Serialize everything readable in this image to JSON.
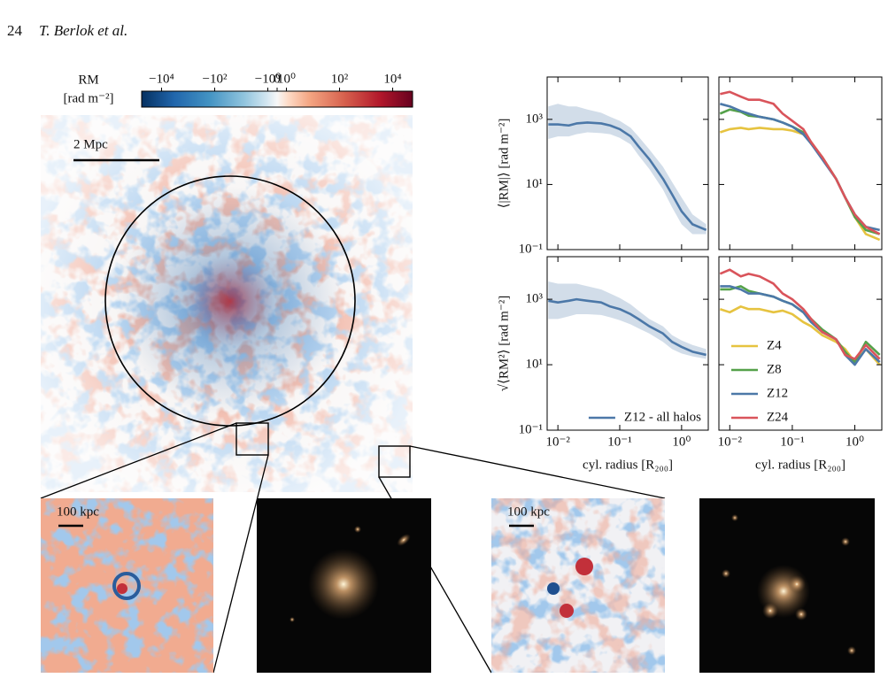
{
  "header": {
    "page": "24",
    "authors": "T. Berlok et al."
  },
  "figure": {
    "colorbar": {
      "label": "RM",
      "unit": "[rad m⁻²]",
      "scale": "symlog",
      "linthresh": 1,
      "clim": [
        -56000,
        56000
      ],
      "ticks": [
        {
          "value": -10000,
          "label": "−10⁴"
        },
        {
          "value": -100,
          "label": "−10²"
        },
        {
          "value": -1,
          "label": "−10⁰"
        },
        0,
        {
          "value": 1,
          "label": "10⁰"
        },
        {
          "value": 100,
          "label": "10²"
        },
        {
          "value": 10000,
          "label": "10⁴"
        }
      ]
    },
    "scale_bars": [
      "2 Mpc",
      "100 kpc",
      "100 kpc"
    ]
  },
  "chart_data": [
    {
      "type": "line",
      "xscale": "log",
      "yscale": "log",
      "xlim": [
        0.0067,
        2.7
      ],
      "ylim": [
        0.1,
        20000
      ],
      "xticks": [
        0.01,
        0.1,
        1
      ],
      "yticks": [
        {
          "value": 0.1,
          "label": "10⁻¹"
        },
        {
          "value": 10,
          "label": "10¹"
        },
        {
          "value": 1000,
          "label": "10³"
        }
      ],
      "ylabel": "⟨|RM|⟩  [rad m⁻²]",
      "x": [
        0.007,
        0.01,
        0.015,
        0.02,
        0.03,
        0.05,
        0.07,
        0.1,
        0.15,
        0.2,
        0.3,
        0.5,
        0.7,
        1,
        1.5,
        2.5
      ],
      "band": {
        "color": "#4c78a8",
        "upper": [
          2500,
          3000,
          2500,
          2500,
          2000,
          1600,
          1200,
          900,
          550,
          300,
          120,
          35,
          12,
          4,
          1.2,
          0.6
        ],
        "lower": [
          250,
          300,
          300,
          350,
          400,
          380,
          350,
          270,
          170,
          80,
          30,
          7,
          2,
          0.6,
          0.3,
          0.3
        ]
      },
      "series": [
        {
          "color": "#4c78a8",
          "values": [
            700,
            700,
            650,
            750,
            800,
            750,
            650,
            500,
            300,
            150,
            60,
            15,
            5,
            1.5,
            0.6,
            0.4
          ]
        }
      ]
    },
    {
      "type": "line",
      "xscale": "log",
      "yscale": "log",
      "xlim": [
        0.0067,
        2.7
      ],
      "ylim": [
        0.1,
        20000
      ],
      "xticks": [
        0.01,
        0.1,
        1
      ],
      "yticks": [
        0.1,
        10,
        1000
      ],
      "x": [
        0.007,
        0.01,
        0.015,
        0.02,
        0.03,
        0.05,
        0.07,
        0.1,
        0.15,
        0.2,
        0.3,
        0.5,
        0.7,
        1,
        1.5,
        2.5
      ],
      "series": [
        {
          "color": "#e6c340",
          "values": [
            400,
            500,
            550,
            500,
            550,
            500,
            500,
            450,
            350,
            200,
            70,
            15,
            4,
            1,
            0.3,
            0.2
          ]
        },
        {
          "color": "#55a14a",
          "values": [
            1500,
            2000,
            1700,
            1300,
            1200,
            1000,
            800,
            600,
            400,
            180,
            70,
            15,
            4,
            1,
            0.4,
            0.3
          ]
        },
        {
          "color": "#4c78a8",
          "values": [
            3000,
            2500,
            1800,
            1500,
            1200,
            1000,
            800,
            600,
            350,
            180,
            60,
            15,
            4,
            1.2,
            0.5,
            0.4
          ]
        },
        {
          "color": "#d9545b",
          "values": [
            6000,
            7000,
            5000,
            4000,
            4000,
            3000,
            1500,
            900,
            500,
            200,
            70,
            15,
            4,
            1.2,
            0.5,
            0.3
          ]
        }
      ]
    },
    {
      "type": "line",
      "xscale": "log",
      "yscale": "log",
      "xlim": [
        0.0067,
        2.7
      ],
      "ylim": [
        0.1,
        20000
      ],
      "xticks": [
        {
          "value": 0.01,
          "label": "10⁻²"
        },
        {
          "value": 0.1,
          "label": "10⁻¹"
        },
        {
          "value": 1,
          "label": "10⁰"
        }
      ],
      "yticks": [
        {
          "value": 0.1,
          "label": "10⁻¹"
        },
        {
          "value": 10,
          "label": "10¹"
        },
        {
          "value": 1000,
          "label": "10³"
        }
      ],
      "xlabel": "cyl. radius [R₂₀₀]",
      "ylabel": "√⟨RM²⟩  [rad m⁻²]",
      "legend": "lower right",
      "x": [
        0.007,
        0.01,
        0.015,
        0.02,
        0.03,
        0.05,
        0.07,
        0.1,
        0.15,
        0.2,
        0.3,
        0.5,
        0.7,
        1,
        1.5,
        2.5
      ],
      "band": {
        "color": "#4c78a8",
        "upper": [
          3500,
          3000,
          3000,
          3000,
          2500,
          2000,
          1500,
          1100,
          700,
          450,
          250,
          150,
          80,
          55,
          40,
          30
        ],
        "lower": [
          250,
          250,
          300,
          350,
          350,
          330,
          280,
          230,
          170,
          130,
          90,
          50,
          30,
          22,
          18,
          15
        ]
      },
      "series": [
        {
          "name": "Z12 - all halos",
          "color": "#4c78a8",
          "values": [
            900,
            800,
            900,
            1000,
            900,
            800,
            600,
            500,
            350,
            250,
            150,
            90,
            50,
            35,
            25,
            20
          ]
        }
      ]
    },
    {
      "type": "line",
      "xscale": "log",
      "yscale": "log",
      "xlim": [
        0.0067,
        2.7
      ],
      "ylim": [
        0.1,
        20000
      ],
      "xticks": [
        {
          "value": 0.01,
          "label": "10⁻²"
        },
        {
          "value": 0.1,
          "label": "10⁻¹"
        },
        {
          "value": 1,
          "label": "10⁰"
        }
      ],
      "yticks": [
        0.1,
        10,
        1000
      ],
      "xlabel": "cyl. radius [R₂₀₀]",
      "legend": "lower left",
      "x": [
        0.007,
        0.01,
        0.015,
        0.02,
        0.03,
        0.05,
        0.07,
        0.1,
        0.15,
        0.2,
        0.3,
        0.5,
        0.7,
        1,
        1.5,
        2.5
      ],
      "series": [
        {
          "name": "Z4",
          "color": "#e6c340",
          "values": [
            500,
            400,
            600,
            500,
            500,
            400,
            450,
            350,
            200,
            150,
            80,
            50,
            30,
            12,
            30,
            10
          ]
        },
        {
          "name": "Z8",
          "color": "#55a14a",
          "values": [
            2000,
            2000,
            2500,
            1800,
            1500,
            1200,
            900,
            700,
            400,
            250,
            120,
            60,
            25,
            12,
            50,
            20
          ]
        },
        {
          "name": "Z12",
          "color": "#4c78a8",
          "values": [
            2500,
            2500,
            2000,
            1500,
            1500,
            1200,
            900,
            700,
            400,
            200,
            100,
            60,
            20,
            10,
            30,
            12
          ]
        },
        {
          "name": "Z24",
          "color": "#d9545b",
          "values": [
            6000,
            8000,
            5000,
            6000,
            5000,
            3000,
            1500,
            1000,
            500,
            250,
            100,
            60,
            20,
            15,
            40,
            15
          ]
        }
      ]
    }
  ]
}
